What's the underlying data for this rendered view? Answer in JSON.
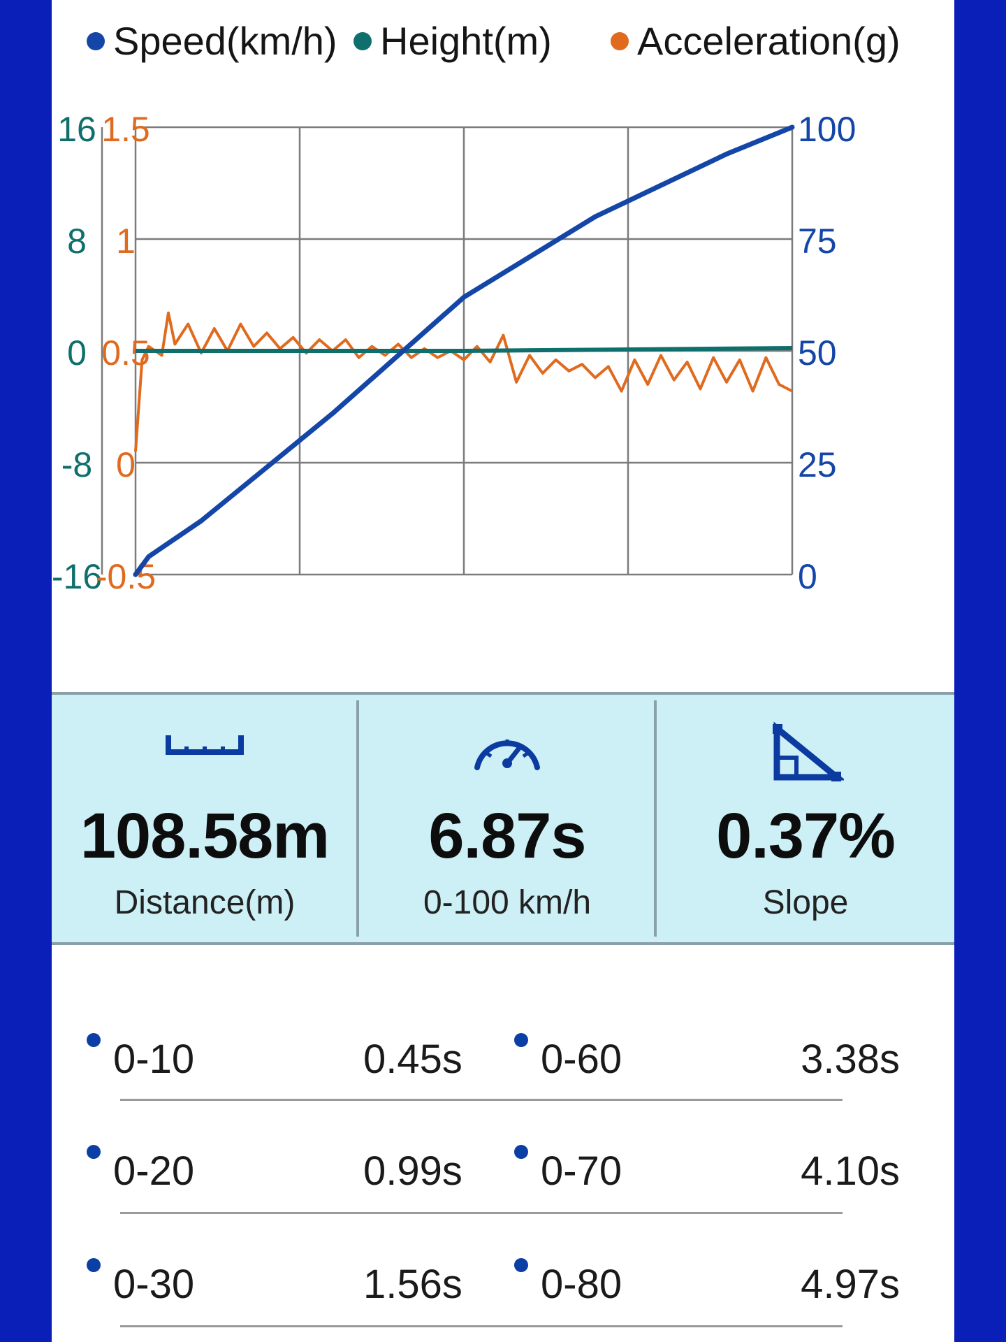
{
  "legend": [
    {
      "label": "Speed(km/h)",
      "color": "#1446a8"
    },
    {
      "label": "Height(m)",
      "color": "#0f6f6c"
    },
    {
      "label": "Acceleration(g)",
      "color": "#e06a1e"
    }
  ],
  "axes": {
    "height_ticks": [
      "16",
      "8",
      "0",
      "-8",
      "-16"
    ],
    "accel_ticks": [
      "1.5",
      "1",
      "0.5",
      "0",
      "-0.5"
    ],
    "speed_ticks": [
      "100",
      "75",
      "50",
      "25",
      "0"
    ]
  },
  "chart_data": {
    "type": "line",
    "x": [
      0,
      0.2,
      0.4,
      0.6,
      0.8,
      1.0
    ],
    "x_unit_note": "",
    "series": [
      {
        "name": "Speed(km/h)",
        "axis": "right",
        "color": "#1446a8",
        "x": [
          0,
          0.02,
          0.1,
          0.2,
          0.3,
          0.4,
          0.5,
          0.6,
          0.7,
          0.8,
          0.9,
          1.0
        ],
        "values": [
          0,
          4,
          12,
          24,
          36,
          49,
          62,
          71,
          80,
          87,
          94,
          100
        ]
      },
      {
        "name": "Height(m)",
        "axis": "left-outer",
        "color": "#0f6f6c",
        "x": [
          0,
          0.5,
          1.0
        ],
        "values": [
          0,
          0,
          0.2
        ]
      },
      {
        "name": "Acceleration(g)",
        "axis": "left-inner",
        "color": "#e06a1e",
        "x": [
          0,
          0.01,
          0.02,
          0.04,
          0.05,
          0.06,
          0.08,
          0.1,
          0.12,
          0.14,
          0.16,
          0.18,
          0.2,
          0.22,
          0.24,
          0.26,
          0.28,
          0.3,
          0.32,
          0.34,
          0.36,
          0.38,
          0.4,
          0.42,
          0.44,
          0.46,
          0.48,
          0.5,
          0.52,
          0.54,
          0.56,
          0.58,
          0.6,
          0.62,
          0.64,
          0.66,
          0.68,
          0.7,
          0.72,
          0.74,
          0.76,
          0.78,
          0.8,
          0.82,
          0.84,
          0.86,
          0.88,
          0.9,
          0.92,
          0.94,
          0.96,
          0.98,
          1.0
        ],
        "values": [
          0.05,
          0.46,
          0.52,
          0.48,
          0.67,
          0.53,
          0.62,
          0.49,
          0.6,
          0.5,
          0.62,
          0.52,
          0.58,
          0.51,
          0.56,
          0.49,
          0.55,
          0.5,
          0.55,
          0.47,
          0.52,
          0.48,
          0.53,
          0.47,
          0.51,
          0.47,
          0.5,
          0.46,
          0.52,
          0.45,
          0.57,
          0.36,
          0.48,
          0.4,
          0.46,
          0.41,
          0.44,
          0.38,
          0.43,
          0.32,
          0.46,
          0.35,
          0.48,
          0.37,
          0.45,
          0.33,
          0.47,
          0.36,
          0.46,
          0.32,
          0.47,
          0.35,
          0.32
        ]
      }
    ],
    "ylim_speed": [
      0,
      100
    ],
    "ylim_height": [
      -16,
      16
    ],
    "ylim_accel": [
      -0.5,
      1.5
    ],
    "grid": true,
    "legend_position": "top"
  },
  "stats": [
    {
      "icon": "ruler-icon",
      "value": "108.58m",
      "label": "Distance(m)"
    },
    {
      "icon": "speedometer-icon",
      "value": "6.87s",
      "label": "0-100 km/h"
    },
    {
      "icon": "slope-icon",
      "value": "0.37%",
      "label": "Slope"
    }
  ],
  "times": [
    {
      "range": "0-10",
      "time": "0.45s"
    },
    {
      "range": "0-60",
      "time": "3.38s"
    },
    {
      "range": "0-20",
      "time": "0.99s"
    },
    {
      "range": "0-70",
      "time": "4.10s"
    },
    {
      "range": "0-30",
      "time": "1.56s"
    },
    {
      "range": "0-80",
      "time": "4.97s"
    }
  ],
  "colors": {
    "frame": "#0a1fb8",
    "panel": "#cdeff6",
    "dot": "#0c3fa6"
  }
}
